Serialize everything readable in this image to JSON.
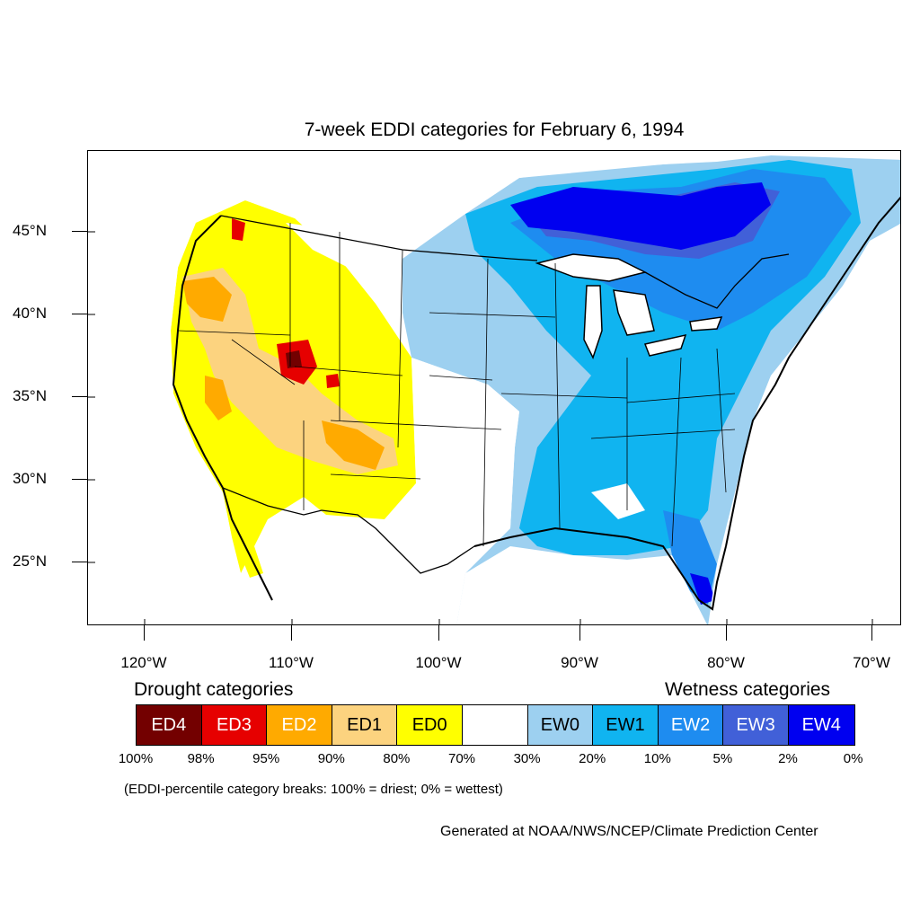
{
  "title": "7-week EDDI categories for February 6, 1994",
  "axes": {
    "lat_labels": [
      "45°N",
      "40°N",
      "35°N",
      "30°N",
      "25°N"
    ],
    "lon_labels": [
      "120°W",
      "110°W",
      "100°W",
      "90°W",
      "80°W",
      "70°W"
    ]
  },
  "legend": {
    "drought_heading": "Drought categories",
    "wetness_heading": "Wetness categories",
    "categories": [
      {
        "label": "ED4",
        "color": "#730000",
        "text_color": "#ffffff"
      },
      {
        "label": "ED3",
        "color": "#e60000",
        "text_color": "#ffffff"
      },
      {
        "label": "ED2",
        "color": "#ffaa00",
        "text_color": "#ffffff"
      },
      {
        "label": "ED1",
        "color": "#fcd37f",
        "text_color": "#000000"
      },
      {
        "label": "ED0",
        "color": "#ffff00",
        "text_color": "#000000"
      },
      {
        "label": "",
        "color": "#ffffff",
        "text_color": "#000000"
      },
      {
        "label": "EW0",
        "color": "#9dd0f0",
        "text_color": "#000000"
      },
      {
        "label": "EW1",
        "color": "#10b4f0",
        "text_color": "#000000"
      },
      {
        "label": "EW2",
        "color": "#1e8cf0",
        "text_color": "#ffffff"
      },
      {
        "label": "EW3",
        "color": "#4160d8",
        "text_color": "#ffffff"
      },
      {
        "label": "EW4",
        "color": "#0000f0",
        "text_color": "#ffffff"
      }
    ],
    "percentiles": [
      "100%",
      "98%",
      "95%",
      "90%",
      "80%",
      "70%",
      "30%",
      "20%",
      "10%",
      "5%",
      "2%",
      "0%"
    ]
  },
  "footnote": "(EDDI-percentile category breaks: 100% = driest; 0% = wettest)",
  "credit": "Generated at NOAA/NWS/NCEP/Climate Prediction Center"
}
